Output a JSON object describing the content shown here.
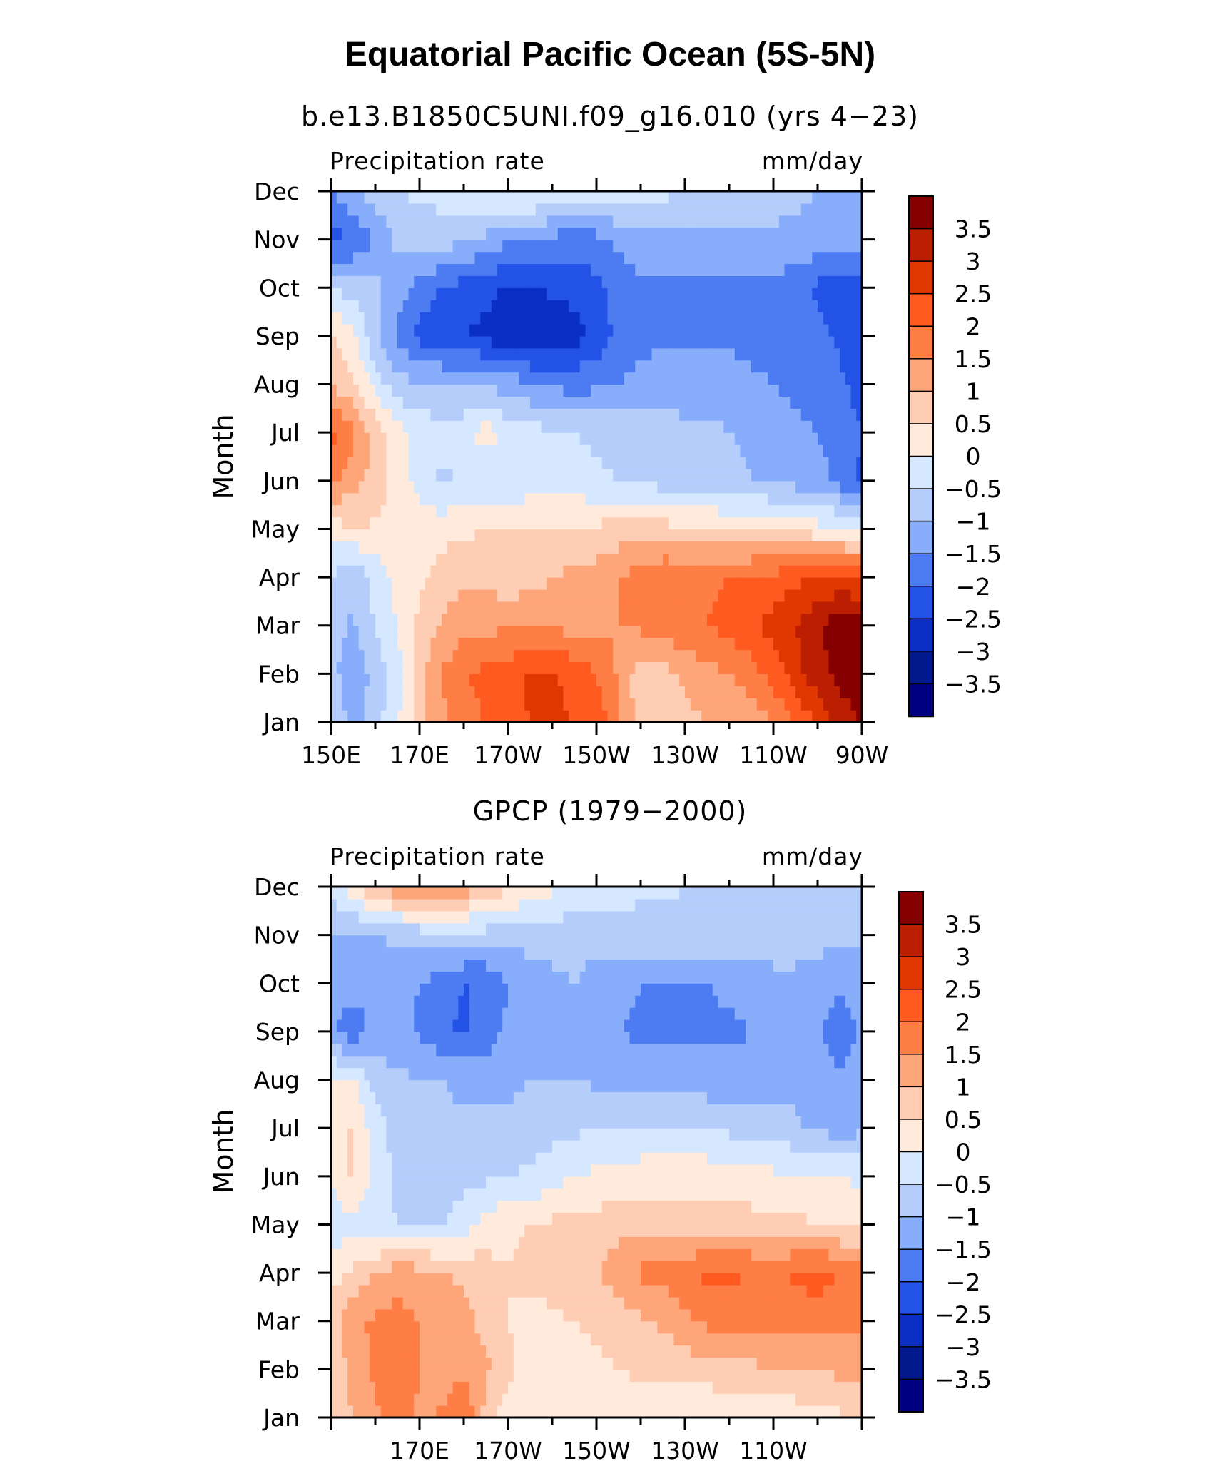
{
  "title": "Equatorial Pacific Ocean (5S-5N)",
  "colorbar": {
    "labels": [
      "3.5",
      "3",
      "2.5",
      "2",
      "1.5",
      "1",
      "0.5",
      "0",
      "−0.5",
      "−1",
      "−1.5",
      "−2",
      "−2.5",
      "−3",
      "−3.5"
    ],
    "colors": [
      "#850000",
      "#bb1e00",
      "#e13700",
      "#ff5a20",
      "#ff7e46",
      "#ffa57a",
      "#ffcdb3",
      "#ffeadc",
      "#d5e8ff",
      "#b4cdfb",
      "#88aefb",
      "#4d7cf2",
      "#2353e6",
      "#0b2fc5",
      "#01198d",
      "#000080"
    ]
  },
  "chart_data": [
    {
      "type": "heatmap",
      "title": "b.e13.B1850C5UNI.f09_g16.010 (yrs 4−23)",
      "left_label": "Precipitation rate",
      "right_label": "mm/day",
      "ylabel": "Month",
      "y_categories": [
        "Jan",
        "Feb",
        "Mar",
        "Apr",
        "May",
        "Jun",
        "Jul",
        "Aug",
        "Sep",
        "Oct",
        "Nov",
        "Dec"
      ],
      "x_tick_labels": [
        "150E",
        "170E",
        "170W",
        "150W",
        "130W",
        "110W",
        "90W"
      ],
      "x_range_deg_east": [
        150,
        270
      ],
      "color_levels": [
        -3.5,
        -3,
        -2.5,
        -2,
        -1.5,
        -1,
        -0.5,
        0,
        0.5,
        1,
        1.5,
        2,
        2.5,
        3,
        3.5
      ],
      "x": [
        150,
        155,
        160,
        165,
        170,
        175,
        180,
        185,
        190,
        195,
        200,
        205,
        210,
        215,
        220,
        225,
        230,
        235,
        240,
        245,
        250,
        255,
        260,
        265,
        270
      ],
      "z": [
        [
          -0.6,
          -1.2,
          -0.7,
          -0.1,
          0.8,
          1.4,
          1.6,
          2.1,
          2.3,
          2.5,
          2.6,
          2.5,
          2.3,
          1.6,
          0.7,
          0.8,
          0.9,
          1.0,
          1.1,
          1.2,
          1.5,
          2.0,
          2.6,
          3.2,
          3.5
        ],
        [
          -0.8,
          -1.4,
          -0.8,
          -0.2,
          0.8,
          1.5,
          2.0,
          2.1,
          2.3,
          2.6,
          2.6,
          2.3,
          2.0,
          1.4,
          0.7,
          0.8,
          1.1,
          1.3,
          1.5,
          1.8,
          2.2,
          2.8,
          3.3,
          3.7,
          3.9
        ],
        [
          -0.7,
          -1.1,
          -0.5,
          0.0,
          0.6,
          1.1,
          1.3,
          1.4,
          1.4,
          1.5,
          1.4,
          1.3,
          1.3,
          1.5,
          1.6,
          1.7,
          1.9,
          2.0,
          2.2,
          2.4,
          2.7,
          3.0,
          3.4,
          3.8,
          3.9
        ],
        [
          -0.5,
          -0.9,
          -0.3,
          0.2,
          0.4,
          0.7,
          0.9,
          0.9,
          0.6,
          0.8,
          1.0,
          1.1,
          1.2,
          1.5,
          1.8,
          2.0,
          1.9,
          1.8,
          2.0,
          2.1,
          2.2,
          2.4,
          2.5,
          2.6,
          2.4
        ],
        [
          0.2,
          0.5,
          0.4,
          0.3,
          0.3,
          0.3,
          0.4,
          0.5,
          0.5,
          0.6,
          0.6,
          0.6,
          0.6,
          0.7,
          0.7,
          0.7,
          0.6,
          0.6,
          0.5,
          0.5,
          0.4,
          0.3,
          0.2,
          0.1,
          0.0
        ],
        [
          1.6,
          1.2,
          0.8,
          0.3,
          -0.2,
          -0.6,
          -0.5,
          -0.6,
          -0.4,
          -0.3,
          -0.3,
          -0.3,
          -0.4,
          -0.5,
          -0.6,
          -0.7,
          -0.7,
          -0.9,
          -0.9,
          -1.0,
          -1.1,
          -1.2,
          -1.3,
          -1.7,
          -2.1
        ],
        [
          2.2,
          1.6,
          0.8,
          0.2,
          -0.2,
          -0.3,
          -0.2,
          0.3,
          -0.2,
          -0.3,
          -0.4,
          -0.5,
          -0.6,
          -0.7,
          -0.7,
          -0.8,
          -0.9,
          -0.9,
          -1.0,
          -1.1,
          -1.2,
          -1.4,
          -1.5,
          -1.7,
          -2.0
        ],
        [
          0.9,
          0.6,
          -0.2,
          -0.8,
          -0.9,
          -0.9,
          -1.0,
          -1.1,
          -1.2,
          -1.4,
          -1.6,
          -1.7,
          -1.6,
          -1.5,
          -1.3,
          -1.2,
          -1.2,
          -1.2,
          -1.3,
          -1.4,
          -1.5,
          -1.6,
          -1.7,
          -1.9,
          -2.2
        ],
        [
          0.6,
          0.2,
          -0.9,
          -1.6,
          -2.2,
          -2.5,
          -2.5,
          -2.6,
          -2.9,
          -3.0,
          -3.0,
          -2.7,
          -2.3,
          -1.9,
          -1.7,
          -1.6,
          -1.6,
          -1.6,
          -1.6,
          -1.7,
          -1.7,
          -1.8,
          -1.9,
          -2.1,
          -2.3
        ],
        [
          -0.5,
          -0.7,
          -0.9,
          -1.3,
          -1.7,
          -2.0,
          -2.2,
          -2.4,
          -2.5,
          -2.5,
          -2.4,
          -2.3,
          -2.1,
          -1.8,
          -1.6,
          -1.6,
          -1.6,
          -1.6,
          -1.6,
          -1.7,
          -1.7,
          -1.8,
          -2.1,
          -2.2,
          -2.3
        ],
        [
          -2.2,
          -2.0,
          -1.4,
          -0.9,
          -0.8,
          -0.8,
          -0.9,
          -1.1,
          -1.5,
          -1.6,
          -1.7,
          -1.8,
          -1.7,
          -1.4,
          -1.2,
          -1.1,
          -1.1,
          -1.1,
          -1.1,
          -1.1,
          -1.1,
          -1.1,
          -1.2,
          -1.3,
          -1.4
        ],
        [
          -1.5,
          -1.0,
          -0.8,
          -0.5,
          -0.4,
          -0.3,
          -0.2,
          0.0,
          0.2,
          0.2,
          0.1,
          0.0,
          -0.1,
          -0.2,
          -0.3,
          -0.4,
          -0.5,
          -0.6,
          -0.7,
          -0.8,
          -0.8,
          -0.9,
          -1.0,
          -1.1,
          -1.3
        ]
      ]
    },
    {
      "type": "heatmap",
      "title": "GPCP (1979−2000)",
      "left_label": "Precipitation rate",
      "right_label": "mm/day",
      "ylabel": "Month",
      "y_categories": [
        "Jan",
        "Feb",
        "Mar",
        "Apr",
        "May",
        "Jun",
        "Jul",
        "Aug",
        "Sep",
        "Oct",
        "Nov",
        "Dec"
      ],
      "x_tick_labels": [
        "170E",
        "170W",
        "150W",
        "130W",
        "110W"
      ],
      "x_range_deg_east": [
        150,
        270
      ],
      "color_levels": [
        -3.5,
        -3,
        -2.5,
        -2,
        -1.5,
        -1,
        -0.5,
        0,
        0.5,
        1,
        1.5,
        2,
        2.5,
        3,
        3.5
      ],
      "x": [
        150,
        155,
        160,
        165,
        170,
        175,
        180,
        185,
        190,
        195,
        200,
        205,
        210,
        215,
        220,
        225,
        230,
        235,
        240,
        245,
        250,
        255,
        260,
        265,
        270
      ],
      "z": [
        [
          0.5,
          1.0,
          1.4,
          1.7,
          1.4,
          1.6,
          2.0,
          0.8,
          0.2,
          0.1,
          0.0,
          0.1,
          0.1,
          0.1,
          0.1,
          0.0,
          0.0,
          -0.1,
          0.0,
          0.1,
          0.1,
          0.2,
          0.3,
          0.4,
          0.5
        ],
        [
          0.6,
          1.2,
          1.6,
          1.8,
          1.5,
          1.2,
          1.4,
          1.1,
          0.6,
          0.3,
          0.3,
          0.3,
          0.4,
          0.5,
          0.6,
          0.6,
          0.7,
          0.8,
          0.9,
          0.9,
          1.0,
          1.0,
          1.0,
          1.1,
          1.2
        ],
        [
          0.7,
          1.4,
          1.6,
          1.7,
          1.5,
          1.3,
          1.2,
          0.8,
          0.5,
          0.4,
          0.4,
          0.5,
          0.6,
          0.7,
          0.9,
          1.1,
          1.4,
          1.6,
          1.7,
          1.6,
          1.6,
          1.7,
          1.8,
          1.7,
          1.6
        ],
        [
          0.3,
          0.6,
          1.0,
          1.3,
          1.2,
          1.0,
          0.9,
          0.7,
          0.5,
          0.6,
          0.7,
          0.8,
          1.0,
          1.3,
          1.6,
          1.7,
          1.8,
          2.1,
          2.1,
          2.0,
          1.7,
          2.1,
          2.2,
          2.0,
          1.8
        ],
        [
          -0.3,
          -0.2,
          -0.4,
          -0.5,
          -0.5,
          -0.5,
          -0.2,
          0.2,
          0.4,
          0.5,
          0.6,
          0.7,
          0.7,
          0.8,
          0.8,
          0.8,
          0.8,
          0.8,
          0.7,
          0.7,
          0.6,
          0.6,
          0.5,
          0.4,
          0.3
        ],
        [
          0.1,
          0.6,
          -0.2,
          -0.6,
          -0.8,
          -0.9,
          -0.7,
          -0.6,
          -0.5,
          -0.4,
          -0.2,
          0.0,
          0.1,
          0.2,
          0.3,
          0.3,
          0.3,
          0.3,
          0.2,
          0.2,
          0.1,
          0.1,
          0.0,
          0.0,
          -0.1
        ],
        [
          0.2,
          0.6,
          -0.3,
          -0.7,
          -0.8,
          -0.9,
          -0.9,
          -0.9,
          -0.9,
          -0.8,
          -0.7,
          -0.6,
          -0.5,
          -0.5,
          -0.5,
          -0.5,
          -0.5,
          -0.5,
          -0.6,
          -0.7,
          -0.7,
          -0.9,
          -1.1,
          -1.2,
          -1.1
        ],
        [
          0.2,
          0.1,
          -0.7,
          -0.9,
          -1.0,
          -1.0,
          -1.1,
          -1.1,
          -1.1,
          -1.0,
          -1.0,
          -1.0,
          -1.1,
          -1.2,
          -1.3,
          -1.3,
          -1.3,
          -1.3,
          -1.3,
          -1.3,
          -1.2,
          -1.2,
          -1.4,
          -1.5,
          -1.4
        ],
        [
          -1.5,
          -1.8,
          -1.3,
          -1.3,
          -1.6,
          -1.9,
          -2.1,
          -1.8,
          -1.4,
          -1.2,
          -1.1,
          -1.1,
          -1.3,
          -1.5,
          -1.6,
          -1.6,
          -1.6,
          -1.6,
          -1.6,
          -1.5,
          -1.4,
          -1.4,
          -1.5,
          -1.6,
          -1.5
        ],
        [
          -1.2,
          -1.3,
          -1.4,
          -1.4,
          -1.5,
          -1.7,
          -2.0,
          -2.0,
          -1.5,
          -1.3,
          -1.1,
          -1.0,
          -1.2,
          -1.4,
          -1.5,
          -1.5,
          -1.5,
          -1.5,
          -1.4,
          -1.3,
          -1.1,
          -1.1,
          -1.3,
          -1.5,
          -1.4
        ],
        [
          -1.0,
          -1.1,
          -1.0,
          -0.9,
          -0.8,
          -0.8,
          -0.7,
          -0.7,
          -0.8,
          -0.8,
          -0.8,
          -0.8,
          -0.8,
          -0.7,
          -0.7,
          -0.7,
          -0.7,
          -0.7,
          -0.7,
          -0.8,
          -0.8,
          -0.8,
          -0.8,
          -0.8,
          -0.8
        ],
        [
          -0.4,
          0.3,
          1.0,
          1.4,
          1.7,
          1.6,
          1.3,
          0.9,
          0.6,
          0.3,
          0.1,
          -0.1,
          -0.2,
          -0.3,
          -0.4,
          -0.4,
          -0.5,
          -0.5,
          -0.5,
          -0.5,
          -0.5,
          -0.5,
          -0.5,
          -0.5,
          -0.5
        ]
      ]
    }
  ]
}
